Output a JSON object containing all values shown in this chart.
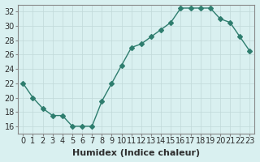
{
  "xlabel": "Humidex (Indice chaleur)",
  "ylabel": "",
  "x_values": [
    0,
    1,
    2,
    3,
    4,
    5,
    6,
    7,
    8,
    9,
    10,
    11,
    12,
    13,
    14,
    15,
    16,
    17,
    18,
    19,
    20,
    21,
    22,
    23
  ],
  "y_values": [
    22,
    20,
    18.5,
    17.5,
    17.5,
    16,
    16,
    16,
    19.5,
    22,
    24.5,
    27,
    27.5,
    28.5,
    29.5,
    30.5,
    32.5,
    32.5,
    32.5,
    32.5,
    31,
    30.5,
    28.5,
    26.5
  ],
  "line_color": "#2e7d6e",
  "marker": "D",
  "marker_size": 3,
  "bg_color": "#d9f0f0",
  "grid_color": "#c0d8d8",
  "axis_color": "#888888",
  "ylim": [
    15,
    33
  ],
  "yticks": [
    16,
    18,
    20,
    22,
    24,
    26,
    28,
    30,
    32
  ],
  "xticks": [
    0,
    1,
    2,
    3,
    4,
    5,
    6,
    7,
    8,
    9,
    10,
    11,
    12,
    13,
    14,
    15,
    16,
    17,
    18,
    19,
    20,
    21,
    22,
    23
  ],
  "tick_fontsize": 7,
  "xlabel_fontsize": 8,
  "title_fontsize": 7
}
